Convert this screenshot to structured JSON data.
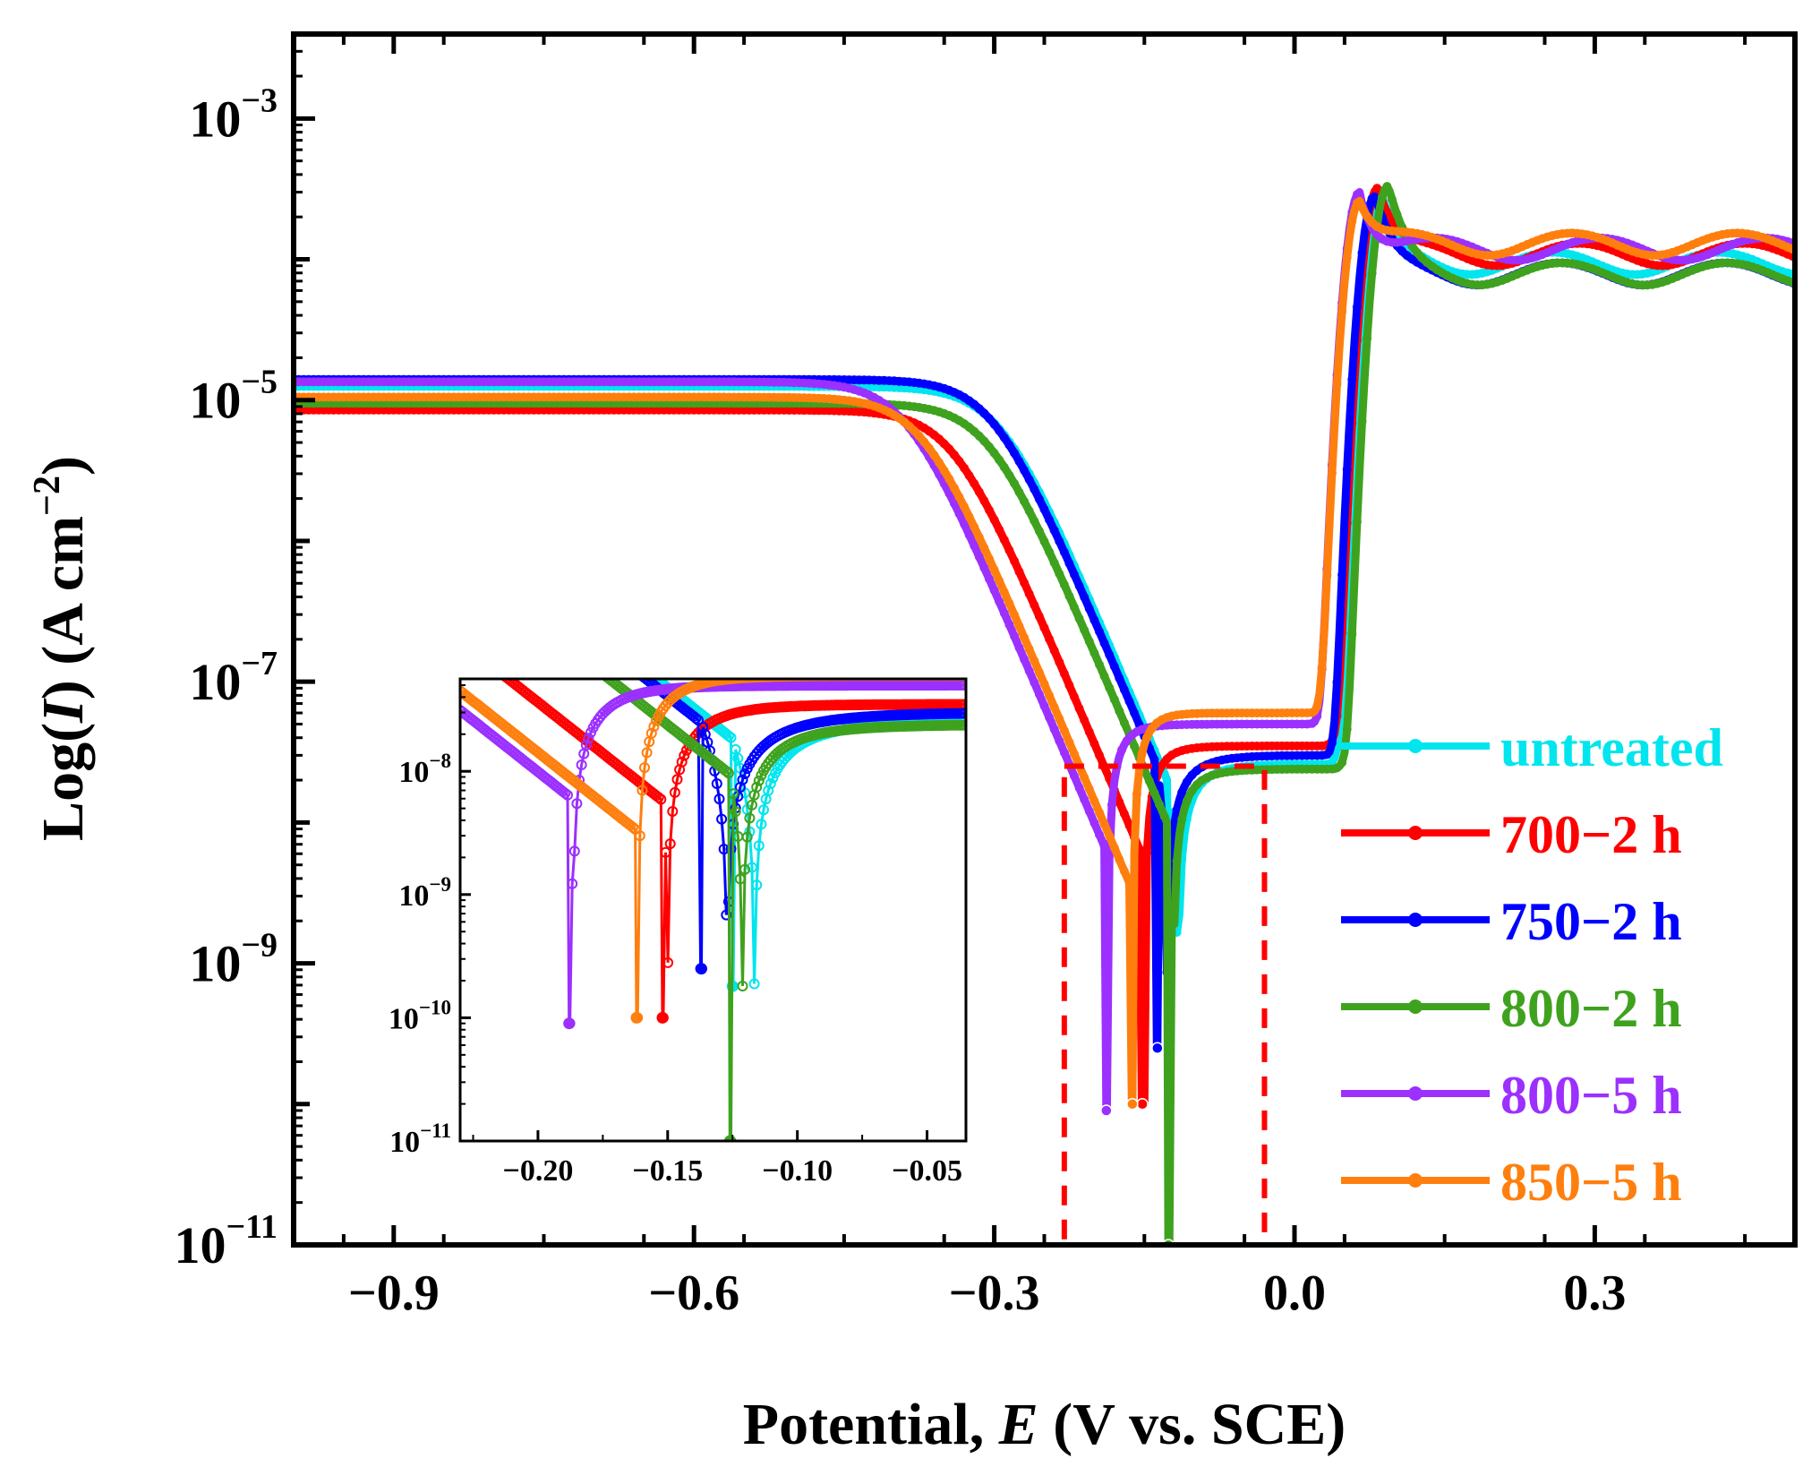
{
  "chart_data": {
    "type": "line",
    "title": "",
    "xlabel": {
      "prefix": "Potential, ",
      "italic": "E",
      "suffix": " (V vs. SCE)"
    },
    "ylabel": {
      "prefix": "Log(",
      "italic": "I",
      "suffix": ") (A cm",
      "sup": "−2",
      "end": ")"
    },
    "xlim": [
      -1.0,
      0.5
    ],
    "ylim_log10": [
      -11,
      -2.4
    ],
    "x_ticks": [
      {
        "v": -0.9,
        "label": "−0.9"
      },
      {
        "v": -0.6,
        "label": "−0.6"
      },
      {
        "v": -0.3,
        "label": "−0.3"
      },
      {
        "v": 0.0,
        "label": "0.0"
      },
      {
        "v": 0.3,
        "label": "0.3"
      }
    ],
    "y_ticks": [
      {
        "e": -11,
        "base": "10",
        "sup": "−11"
      },
      {
        "e": -9,
        "base": "10",
        "sup": "−9"
      },
      {
        "e": -7,
        "base": "10",
        "sup": "−7"
      },
      {
        "e": -5,
        "base": "10",
        "sup": "−5"
      },
      {
        "e": -3,
        "base": "10",
        "sup": "−3"
      }
    ],
    "legend_position": "right",
    "series": [
      {
        "name": "untreated",
        "color": "#00e5ee",
        "ecorr": -0.125,
        "ilimit_c": 1.25e-05,
        "tc": 0.17,
        "ip": 2.6e-08,
        "epp": 0.035,
        "epeak": 0.085,
        "ipeak": 0.0003,
        "ipass": 9.5e-05,
        "min": 1.8e-10
      },
      {
        "name": "700−2 h",
        "color": "#ff0000",
        "ecorr": -0.152,
        "ilimit_c": 8.5e-06,
        "tc": 0.19,
        "ip": 3.5e-08,
        "epp": 0.03,
        "epeak": 0.083,
        "ipeak": 0.00032,
        "ipass": 0.00011,
        "min": 1e-10
      },
      {
        "name": "750−2 h",
        "color": "#0000ff",
        "ecorr": -0.137,
        "ilimit_c": 1.4e-05,
        "tc": 0.165,
        "ip": 3e-08,
        "epp": 0.035,
        "epeak": 0.08,
        "ipeak": 0.00028,
        "ipass": 8e-05,
        "min": 2.5e-10
      },
      {
        "name": "800−2 h",
        "color": "#3fa21e",
        "ecorr": -0.126,
        "ilimit_c": 9.5e-06,
        "tc": 0.18,
        "ip": 2.4e-08,
        "epp": 0.04,
        "epeak": 0.093,
        "ipeak": 0.00033,
        "ipass": 8e-05,
        "min": 1e-11
      },
      {
        "name": "800−5 h",
        "color": "#9b30ff",
        "ecorr": -0.188,
        "ilimit_c": 1.35e-05,
        "tc": 0.2,
        "ip": 5e-08,
        "epp": 0.03,
        "epeak": 0.065,
        "ipeak": 0.0003,
        "ipass": 0.00012,
        "min": 9e-11
      },
      {
        "name": "850−5 h",
        "color": "#ff7f0e",
        "ecorr": -0.162,
        "ilimit_c": 1.05e-05,
        "tc": 0.21,
        "ip": 6e-08,
        "epp": 0.02,
        "epeak": 0.065,
        "ipeak": 0.00026,
        "ipass": 0.00013,
        "min": 1e-10
      }
    ],
    "highlight_box": {
      "x": [
        -0.23,
        -0.03
      ],
      "y_log10": [
        -11,
        -7.6
      ],
      "color": "#ff0000"
    },
    "inset": {
      "xlim": [
        -0.23,
        -0.035
      ],
      "ylim_log10": [
        -11,
        -7.25
      ],
      "x_ticks": [
        {
          "v": -0.2,
          "label": "−0.20"
        },
        {
          "v": -0.15,
          "label": "−0.15"
        },
        {
          "v": -0.1,
          "label": "−0.10"
        },
        {
          "v": -0.05,
          "label": "−0.05"
        }
      ],
      "y_ticks": [
        {
          "e": -11,
          "base": "10",
          "sup": "−11"
        },
        {
          "e": -10,
          "base": "10",
          "sup": "−10"
        },
        {
          "e": -9,
          "base": "10",
          "sup": "−9"
        },
        {
          "e": -8,
          "base": "10",
          "sup": "−8"
        }
      ]
    }
  }
}
